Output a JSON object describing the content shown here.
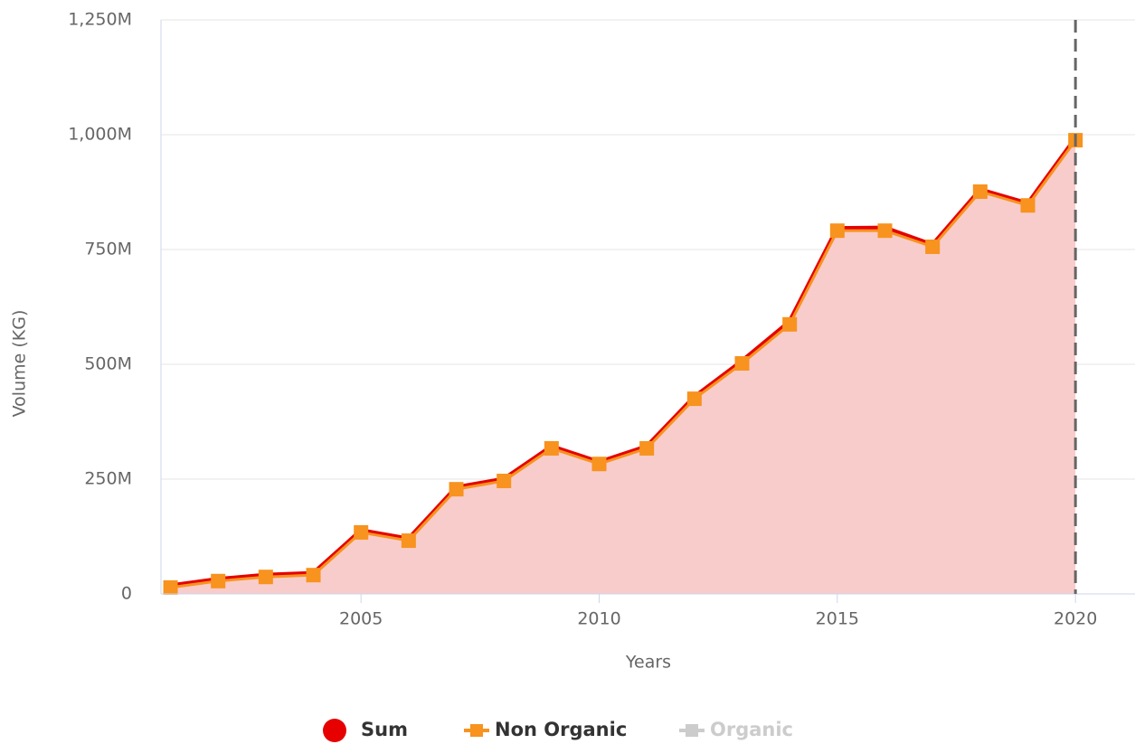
{
  "chart_data": {
    "type": "line",
    "x_label": "Years",
    "y_label": "Volume (KG)",
    "x": [
      2001,
      2002,
      2003,
      2004,
      2005,
      2006,
      2007,
      2008,
      2009,
      2010,
      2011,
      2012,
      2013,
      2014,
      2015,
      2016,
      2017,
      2018,
      2019,
      2020
    ],
    "series": [
      {
        "name": "Sum",
        "color": "#e60000",
        "area": true,
        "fill": "#f9cccc",
        "values": [
          18000000,
          32000000,
          41000000,
          45000000,
          138000000,
          120000000,
          232000000,
          250000000,
          321000000,
          287000000,
          321000000,
          429000000,
          507000000,
          593000000,
          796000000,
          797000000,
          760000000,
          880000000,
          850000000,
          992000000
        ]
      },
      {
        "name": "Non Organic",
        "color": "#f7931e",
        "marker": "square",
        "values": [
          14000000,
          28000000,
          37000000,
          41000000,
          134000000,
          116000000,
          228000000,
          246000000,
          317000000,
          283000000,
          317000000,
          425000000,
          502000000,
          587000000,
          791000000,
          791000000,
          756000000,
          876000000,
          846000000,
          988000000
        ]
      },
      {
        "name": "Organic",
        "color": "#cccccc",
        "visible": false
      }
    ],
    "xlim": [
      2000.8,
      2021.25
    ],
    "xticks": [
      2005,
      2010,
      2015,
      2020
    ],
    "ylim": [
      0,
      1250000000
    ],
    "yticks": [
      0,
      {
        "value": 250000000,
        "label": "250M"
      },
      {
        "value": 500000000,
        "label": "500M"
      },
      {
        "value": 750000000,
        "label": "750M"
      },
      {
        "value": 1000000000,
        "label": "1,000M"
      },
      {
        "value": 1250000000,
        "label": "1,250M"
      }
    ],
    "grid": true,
    "plot_lines": [
      2020
    ]
  }
}
